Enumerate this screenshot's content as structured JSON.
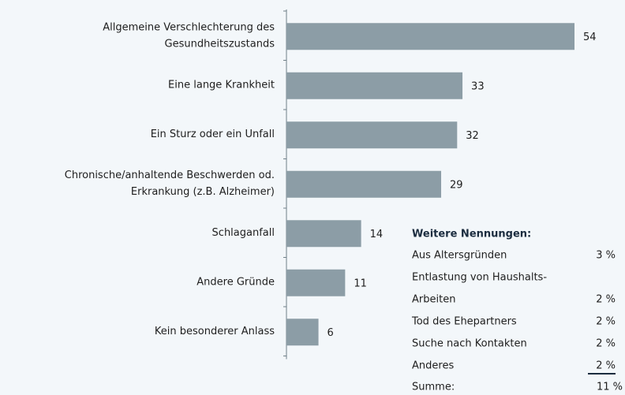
{
  "chart_data": {
    "type": "barh",
    "categories": [
      [
        "Allgemeine Verschlechterung des",
        "Gesundheitszustands"
      ],
      [
        "Eine lange Krankheit"
      ],
      [
        "Ein Sturz oder ein Unfall"
      ],
      [
        "Chronische/anhaltende Beschwerden od.",
        "Erkrankung (z.B. Alzheimer)"
      ],
      [
        "Schlaganfall"
      ],
      [
        "Andere Gründe"
      ],
      [
        "Kein besonderer Anlass"
      ]
    ],
    "values": [
      54,
      33,
      32,
      29,
      14,
      11,
      6
    ],
    "color": "#8c9da6",
    "xlim": [
      0,
      54
    ]
  },
  "table": {
    "title": "Weitere Nennungen:",
    "rows": [
      {
        "label": [
          "Aus Altersgründen"
        ],
        "value": "3 %"
      },
      {
        "label": [
          "Entlastung von Haushalts-",
          "Arbeiten"
        ],
        "value": "2 %"
      },
      {
        "label": [
          "Tod des Ehepartners"
        ],
        "value": "2 %"
      },
      {
        "label": [
          "Suche nach Kontakten"
        ],
        "value": "2 %"
      },
      {
        "label": [
          "Anderes"
        ],
        "value": "2 %"
      }
    ],
    "total": {
      "label": "Summe:",
      "value": "11 %"
    }
  }
}
